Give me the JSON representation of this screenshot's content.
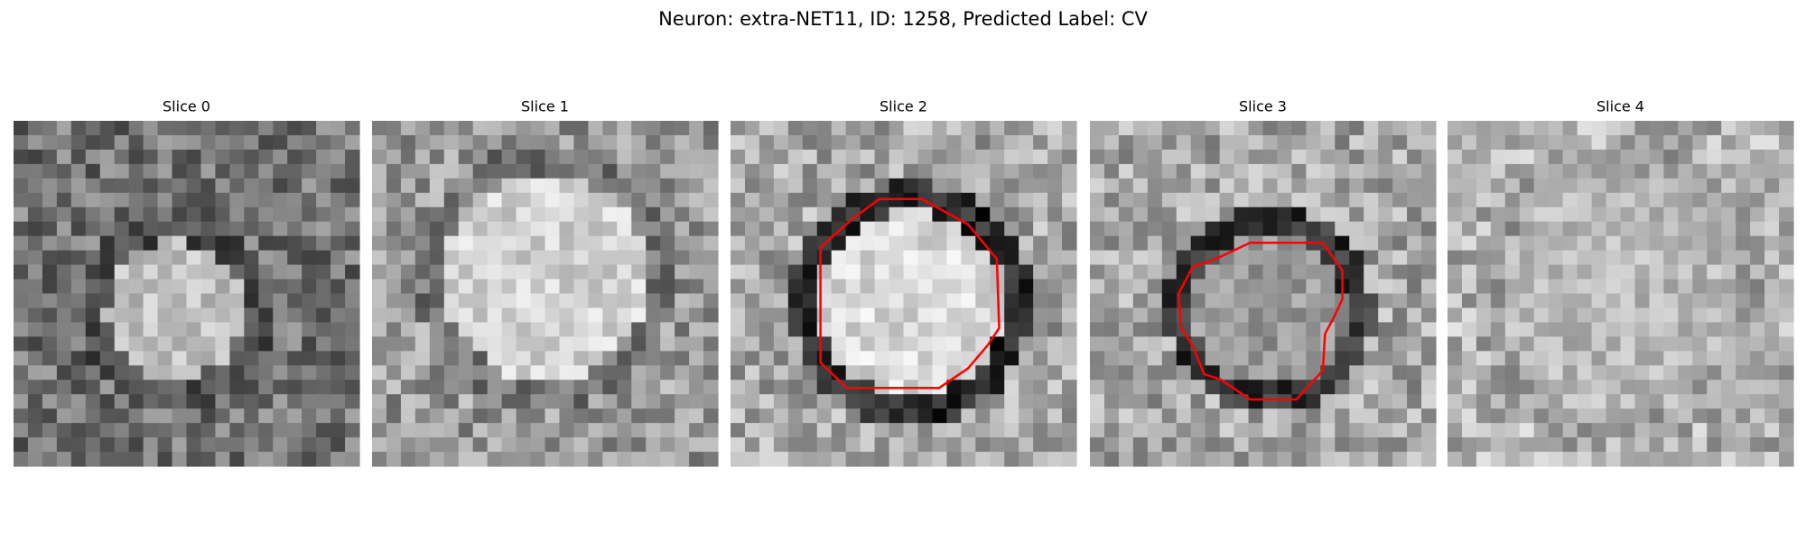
{
  "header": {
    "title": "Neuron: extra-NET11, ID: 1258, Predicted Label: CV"
  },
  "panels": [
    {
      "title": "Slice 0"
    },
    {
      "title": "Slice 1"
    },
    {
      "title": "Slice 2"
    },
    {
      "title": "Slice 3"
    },
    {
      "title": "Slice 4"
    }
  ]
}
